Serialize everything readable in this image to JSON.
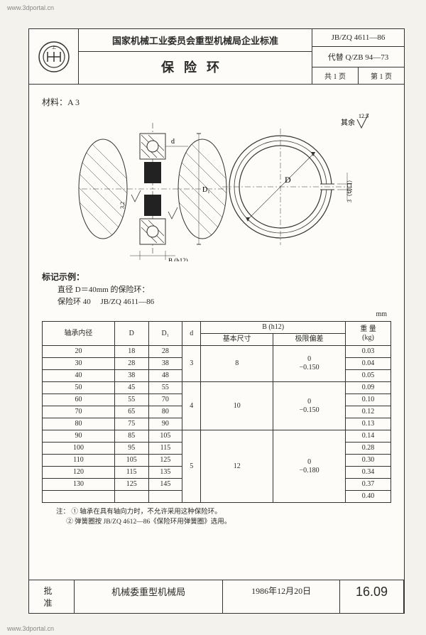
{
  "watermark": {
    "top": "www.3dportal.cn",
    "bottom": "www.3dportal.cn"
  },
  "header": {
    "org_line": "国家机械工业委员会重型机械局企业标准",
    "title": "保险环",
    "std_no": "JB/ZQ 4611—86",
    "replace": "代替 Q/ZB 94—73",
    "pages_total_label": "共 1 页",
    "page_no_label": "第 1 页"
  },
  "material_label": "材料：A 3",
  "diagram": {
    "roughness_label": "其余",
    "roughness_value": "12.5",
    "dim_d": "d",
    "dim_Ds": "D₁",
    "dim_B": "B (h12)",
    "dim_D": "D",
    "dim_gap": "3（切口）",
    "dim_32": "3.2"
  },
  "marking": {
    "label": "标记示例：",
    "line1": "直径 D＝40mm 的保险环：",
    "line2_a": "保险环 40",
    "line2_b": "JB/ZQ 4611—86"
  },
  "unit": "mm",
  "table": {
    "head": {
      "c1": "轴承内径",
      "c2": "D",
      "c3": "D₁",
      "c4": "d",
      "c5": "B (h12)",
      "c5a": "基本尺寸",
      "c5b": "极限偏差",
      "c6": "重  量\n(kg)"
    },
    "rows": [
      {
        "c1": "20",
        "c2": "18",
        "c3": "28",
        "c4g": "3",
        "c5ag": "8",
        "c5bg": "0\n−0.150",
        "c6": "0.03"
      },
      {
        "c1": "30",
        "c2": "28",
        "c3": "38",
        "c6": "0.04"
      },
      {
        "c1": "40",
        "c2": "38",
        "c3": "48",
        "c6": "0.05"
      },
      {
        "c1": "50",
        "c2": "45",
        "c3": "55",
        "c4g": "4",
        "c5ag": "10",
        "c5bg": "0\n−0.150",
        "c6": "0.09"
      },
      {
        "c1": "60",
        "c2": "55",
        "c3": "70",
        "c6": "0.10"
      },
      {
        "c1": "70",
        "c2": "65",
        "c3": "80",
        "c6": "0.12"
      },
      {
        "c1": "80",
        "c2": "75",
        "c3": "90",
        "c6": "0.13"
      },
      {
        "c1": "90",
        "c2": "85",
        "c3": "105",
        "c4g": "5",
        "c5ag": "12",
        "c5bg": "0\n−0.180",
        "c6": "0.14"
      },
      {
        "c1": "100",
        "c2": "95",
        "c3": "115",
        "c6": "0.28"
      },
      {
        "c1": "110",
        "c2": "105",
        "c3": "125",
        "c6": "0.30"
      },
      {
        "c1": "120",
        "c2": "115",
        "c3": "135",
        "c6": "0.34"
      },
      {
        "c1": "130",
        "c2": "125",
        "c3": "145",
        "c6": "0.37"
      },
      {
        "c1": "",
        "c2": "",
        "c3": "",
        "c6": "0.40"
      }
    ],
    "group_spans": [
      3,
      4,
      6
    ]
  },
  "notes": {
    "prefix": "注：",
    "n1": "① 轴承在具有轴向力时，不允许采用这种保险环。",
    "n2": "② 弹簧圈按 JB/ZQ 4612—86《保险环用弹簧圈》选用。"
  },
  "footer": {
    "approve_label": "批  准",
    "org": "机械委重型机械局",
    "date": "1986年12月20日",
    "std_short": "16.09"
  },
  "colors": {
    "paper": "#fdfcf8",
    "ink": "#2a2a2a",
    "border": "#333333"
  }
}
